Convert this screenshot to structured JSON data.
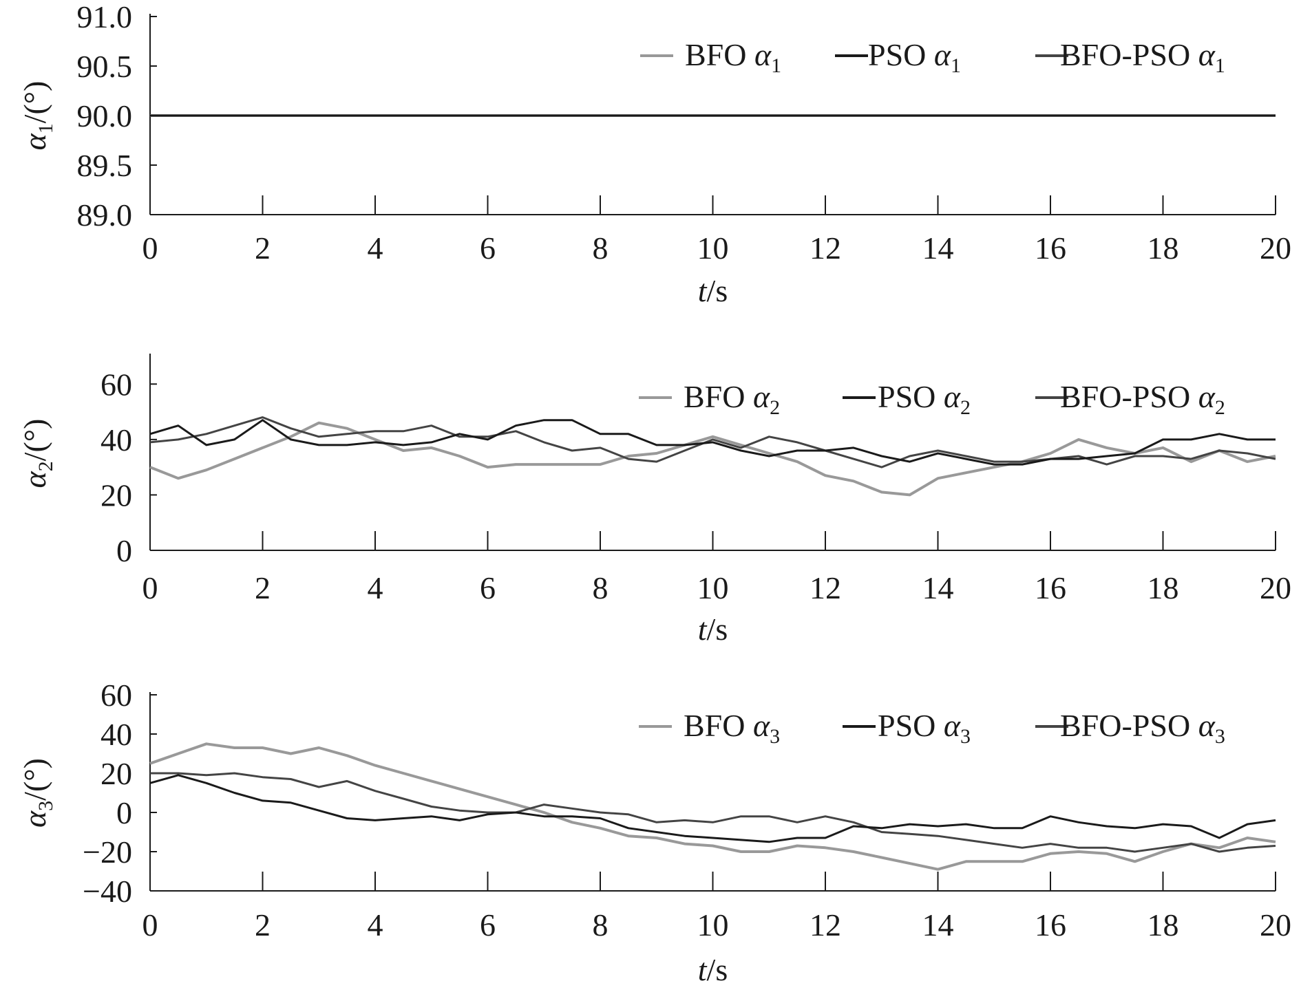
{
  "chart_data": [
    {
      "type": "line",
      "ylabel": "α1/(°)",
      "xlabel": "t/s",
      "xlim": [
        0,
        20
      ],
      "ylim": [
        89.0,
        91.0
      ],
      "xticks": [
        "0",
        "2",
        "4",
        "6",
        "8",
        "10",
        "12",
        "14",
        "16",
        "18",
        "20"
      ],
      "yticks": [
        "89.0",
        "89.5",
        "90.0",
        "90.5",
        "91.0"
      ],
      "legend_position": "top-right",
      "legend": [
        "BFO α1",
        "PSO α1",
        "BFO-PSO α1"
      ],
      "series": [
        {
          "name": "BFO α1",
          "color": "#999999",
          "x": [
            0,
            20
          ],
          "values": [
            90.0,
            90.0
          ]
        },
        {
          "name": "PSO α1",
          "color": "#1a1a1a",
          "x": [
            0,
            20
          ],
          "values": [
            90.0,
            90.0
          ]
        },
        {
          "name": "BFO-PSO α1",
          "color": "#444444",
          "x": [
            0,
            20
          ],
          "values": [
            90.0,
            90.0
          ]
        }
      ]
    },
    {
      "type": "line",
      "ylabel": "α2/(°)",
      "xlabel": "t/s",
      "xlim": [
        0,
        20
      ],
      "ylim": [
        0,
        70
      ],
      "xticks": [
        "0",
        "2",
        "4",
        "6",
        "8",
        "10",
        "12",
        "14",
        "16",
        "18",
        "20"
      ],
      "yticks": [
        "0",
        "20",
        "40",
        "60"
      ],
      "legend_position": "top-right",
      "legend": [
        "BFO α2",
        "PSO α2",
        "BFO-PSO α2"
      ],
      "series": [
        {
          "name": "BFO α2",
          "color": "#999999",
          "x": [
            0,
            0.5,
            1,
            1.5,
            2,
            2.5,
            3,
            3.5,
            4,
            4.5,
            5,
            5.5,
            6,
            6.5,
            7,
            7.5,
            8,
            8.5,
            9,
            9.5,
            10,
            10.5,
            11,
            11.5,
            12,
            12.5,
            13,
            13.5,
            14,
            14.5,
            15,
            15.5,
            16,
            16.5,
            17,
            17.5,
            18,
            18.5,
            19,
            19.5,
            20
          ],
          "values": [
            30,
            26,
            29,
            33,
            37,
            41,
            46,
            44,
            40,
            36,
            37,
            34,
            30,
            31,
            31,
            31,
            31,
            34,
            35,
            38,
            41,
            38,
            35,
            32,
            27,
            25,
            21,
            20,
            26,
            28,
            30,
            32,
            35,
            40,
            37,
            35,
            37,
            32,
            36,
            32,
            34
          ]
        },
        {
          "name": "PSO α2",
          "color": "#1a1a1a",
          "x": [
            0,
            0.5,
            1,
            1.5,
            2,
            2.5,
            3,
            3.5,
            4,
            4.5,
            5,
            5.5,
            6,
            6.5,
            7,
            7.5,
            8,
            8.5,
            9,
            9.5,
            10,
            10.5,
            11,
            11.5,
            12,
            12.5,
            13,
            13.5,
            14,
            14.5,
            15,
            15.5,
            16,
            16.5,
            17,
            17.5,
            18,
            18.5,
            19,
            19.5,
            20
          ],
          "values": [
            42,
            45,
            38,
            40,
            47,
            40,
            38,
            38,
            39,
            38,
            39,
            42,
            40,
            45,
            47,
            47,
            42,
            42,
            38,
            38,
            39,
            36,
            34,
            36,
            36,
            37,
            34,
            32,
            35,
            33,
            31,
            31,
            33,
            33,
            34,
            35,
            40,
            40,
            42,
            40,
            40
          ]
        },
        {
          "name": "BFO-PSO α2",
          "color": "#444444",
          "x": [
            0,
            0.5,
            1,
            1.5,
            2,
            2.5,
            3,
            3.5,
            4,
            4.5,
            5,
            5.5,
            6,
            6.5,
            7,
            7.5,
            8,
            8.5,
            9,
            9.5,
            10,
            10.5,
            11,
            11.5,
            12,
            12.5,
            13,
            13.5,
            14,
            14.5,
            15,
            15.5,
            16,
            16.5,
            17,
            17.5,
            18,
            18.5,
            19,
            19.5,
            20
          ],
          "values": [
            39,
            40,
            42,
            45,
            48,
            44,
            41,
            42,
            43,
            43,
            45,
            41,
            41,
            43,
            39,
            36,
            37,
            33,
            32,
            36,
            40,
            37,
            41,
            39,
            36,
            33,
            30,
            34,
            36,
            34,
            32,
            32,
            33,
            34,
            31,
            34,
            34,
            33,
            36,
            35,
            33
          ]
        }
      ]
    },
    {
      "type": "line",
      "ylabel": "α3/(°)",
      "xlabel": "t/s",
      "xlim": [
        0,
        20
      ],
      "ylim": [
        -40,
        60
      ],
      "xticks": [
        "0",
        "2",
        "4",
        "6",
        "8",
        "10",
        "12",
        "14",
        "16",
        "18",
        "20"
      ],
      "yticks": [
        "-40",
        "-20",
        "0",
        "20",
        "40",
        "60"
      ],
      "legend_position": "top-right",
      "legend": [
        "BFO α3",
        "PSO α3",
        "BFO-PSO α3"
      ],
      "series": [
        {
          "name": "BFO α3",
          "color": "#999999",
          "x": [
            0,
            0.5,
            1,
            1.5,
            2,
            2.5,
            3,
            3.5,
            4,
            4.5,
            5,
            5.5,
            6,
            6.5,
            7,
            7.5,
            8,
            8.5,
            9,
            9.5,
            10,
            10.5,
            11,
            11.5,
            12,
            12.5,
            13,
            13.5,
            14,
            14.5,
            15,
            15.5,
            16,
            16.5,
            17,
            17.5,
            18,
            18.5,
            19,
            19.5,
            20
          ],
          "values": [
            25,
            30,
            35,
            33,
            33,
            30,
            33,
            29,
            24,
            20,
            16,
            12,
            8,
            4,
            0,
            -5,
            -8,
            -12,
            -13,
            -16,
            -17,
            -20,
            -20,
            -17,
            -18,
            -20,
            -23,
            -26,
            -29,
            -25,
            -25,
            -25,
            -21,
            -20,
            -21,
            -25,
            -20,
            -16,
            -18,
            -13,
            -15
          ]
        },
        {
          "name": "PSO α3",
          "color": "#1a1a1a",
          "x": [
            0,
            0.5,
            1,
            1.5,
            2,
            2.5,
            3,
            3.5,
            4,
            4.5,
            5,
            5.5,
            6,
            6.5,
            7,
            7.5,
            8,
            8.5,
            9,
            9.5,
            10,
            10.5,
            11,
            11.5,
            12,
            12.5,
            13,
            13.5,
            14,
            14.5,
            15,
            15.5,
            16,
            16.5,
            17,
            17.5,
            18,
            18.5,
            19,
            19.5,
            20
          ],
          "values": [
            15,
            19,
            15,
            10,
            6,
            5,
            1,
            -3,
            -4,
            -3,
            -2,
            -4,
            -1,
            0,
            -2,
            -2,
            -3,
            -8,
            -10,
            -12,
            -13,
            -14,
            -15,
            -13,
            -13,
            -7,
            -8,
            -6,
            -7,
            -6,
            -8,
            -8,
            -2,
            -5,
            -7,
            -8,
            -6,
            -7,
            -13,
            -6,
            -4
          ]
        },
        {
          "name": "BFO-PSO α3",
          "color": "#444444",
          "x": [
            0,
            0.5,
            1,
            1.5,
            2,
            2.5,
            3,
            3.5,
            4,
            4.5,
            5,
            5.5,
            6,
            6.5,
            7,
            7.5,
            8,
            8.5,
            9,
            9.5,
            10,
            10.5,
            11,
            11.5,
            12,
            12.5,
            13,
            13.5,
            14,
            14.5,
            15,
            15.5,
            16,
            16.5,
            17,
            17.5,
            18,
            18.5,
            19,
            19.5,
            20
          ],
          "values": [
            20,
            20,
            19,
            20,
            18,
            17,
            13,
            16,
            11,
            7,
            3,
            1,
            0,
            0,
            4,
            2,
            0,
            -1,
            -5,
            -4,
            -5,
            -2,
            -2,
            -5,
            -2,
            -5,
            -10,
            -11,
            -12,
            -14,
            -16,
            -18,
            -16,
            -18,
            -18,
            -20,
            -18,
            -16,
            -20,
            -18,
            -17
          ]
        }
      ]
    }
  ]
}
